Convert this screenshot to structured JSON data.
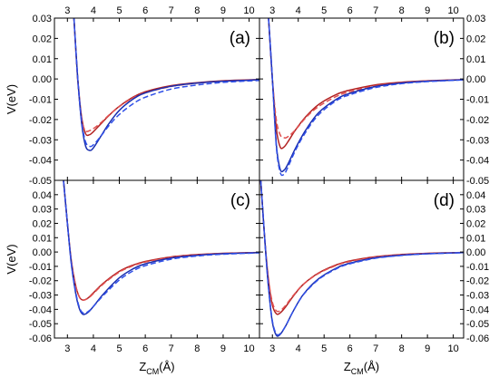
{
  "chart_data": [
    {
      "type": "line",
      "panel_label": "(a)",
      "xlabel_main": "Z",
      "xlabel_sub": "CM",
      "xlabel_unit": "(Å)",
      "ylabel": "V(eV)",
      "xlim": [
        2.5,
        10.4
      ],
      "ylim": [
        -0.05,
        0.03
      ],
      "xticks": [
        3,
        4,
        5,
        6,
        7,
        8,
        9,
        10
      ],
      "yticks": [
        -0.05,
        -0.04,
        -0.03,
        -0.02,
        -0.01,
        0.0,
        0.01,
        0.02,
        0.03
      ],
      "ytick_labels": [
        "-0.05",
        "-0.04",
        "-0.03",
        "-0.02",
        "-0.01",
        "0.00",
        "0.01",
        "0.02",
        "0.03"
      ],
      "series": [
        {
          "color": "#b22222",
          "dash": "solid",
          "x": [
            3.25,
            3.4,
            3.55,
            3.7,
            3.85,
            4.0,
            4.3,
            4.6,
            5.0,
            5.5,
            6.0,
            7.0,
            8.0,
            9.0,
            10.4
          ],
          "y": [
            0.03,
            0.0,
            -0.019,
            -0.027,
            -0.0275,
            -0.026,
            -0.022,
            -0.018,
            -0.0135,
            -0.0092,
            -0.0063,
            -0.0033,
            -0.0018,
            -0.0009,
            -0.0003
          ]
        },
        {
          "color": "#e05050",
          "dash": "dashed",
          "x": [
            3.25,
            3.4,
            3.55,
            3.7,
            3.85,
            4.0,
            4.3,
            4.6,
            5.0,
            5.5,
            6.0,
            7.0,
            8.0,
            9.0,
            10.4
          ],
          "y": [
            0.03,
            -0.001,
            -0.02,
            -0.0255,
            -0.0255,
            -0.0245,
            -0.0215,
            -0.0178,
            -0.0136,
            -0.0095,
            -0.0068,
            -0.0037,
            -0.0021,
            -0.0011,
            -0.0004
          ]
        },
        {
          "color": "#1a2fb0",
          "dash": "solid",
          "x": [
            3.25,
            3.4,
            3.55,
            3.7,
            3.85,
            4.0,
            4.3,
            4.6,
            5.0,
            5.5,
            6.0,
            7.0,
            8.0,
            9.0,
            10.4
          ],
          "y": [
            0.03,
            0.0,
            -0.022,
            -0.033,
            -0.0352,
            -0.034,
            -0.028,
            -0.022,
            -0.0155,
            -0.0102,
            -0.0069,
            -0.0036,
            -0.002,
            -0.0011,
            -0.0004
          ]
        },
        {
          "color": "#3050e8",
          "dash": "dashed",
          "x": [
            3.25,
            3.4,
            3.55,
            3.7,
            3.85,
            4.0,
            4.3,
            4.6,
            5.0,
            5.5,
            6.0,
            7.0,
            8.0,
            9.0,
            10.4
          ],
          "y": [
            0.03,
            0.0,
            -0.021,
            -0.031,
            -0.0332,
            -0.0325,
            -0.028,
            -0.023,
            -0.0175,
            -0.0125,
            -0.009,
            -0.005,
            -0.003,
            -0.0017,
            -0.0007
          ]
        }
      ]
    },
    {
      "type": "line",
      "panel_label": "(b)",
      "xlabel_main": "Z",
      "xlabel_sub": "CM",
      "xlabel_unit": "(Å)",
      "ylabel": "V(eV)",
      "xlim": [
        2.5,
        10.4
      ],
      "ylim": [
        -0.05,
        0.03
      ],
      "xticks": [
        3,
        4,
        5,
        6,
        7,
        8,
        9,
        10
      ],
      "yticks": [
        -0.05,
        -0.04,
        -0.03,
        -0.02,
        -0.01,
        0.0,
        0.01,
        0.02,
        0.03
      ],
      "ytick_labels": [
        "-0.05",
        "-0.04",
        "-0.03",
        "-0.02",
        "-0.01",
        "0.00",
        "0.01",
        "0.02",
        "0.03"
      ],
      "series": [
        {
          "color": "#b22222",
          "dash": "solid",
          "x": [
            2.85,
            3.0,
            3.15,
            3.3,
            3.45,
            3.6,
            3.9,
            4.3,
            4.8,
            5.5,
            6.0,
            7.0,
            8.0,
            9.0,
            10.4
          ],
          "y": [
            0.03,
            0.0,
            -0.024,
            -0.0335,
            -0.0335,
            -0.031,
            -0.025,
            -0.0185,
            -0.0125,
            -0.0075,
            -0.0055,
            -0.0029,
            -0.0016,
            -0.0009,
            -0.0003
          ]
        },
        {
          "color": "#e05050",
          "dash": "dashed",
          "x": [
            2.85,
            3.0,
            3.15,
            3.3,
            3.45,
            3.6,
            3.9,
            4.3,
            4.8,
            5.5,
            6.0,
            7.0,
            8.0,
            9.0,
            10.4
          ],
          "y": [
            0.03,
            0.0,
            -0.02,
            -0.0275,
            -0.029,
            -0.0285,
            -0.025,
            -0.019,
            -0.0135,
            -0.0085,
            -0.0063,
            -0.0034,
            -0.0019,
            -0.001,
            -0.0004
          ]
        },
        {
          "color": "#1a2fb0",
          "dash": "solid",
          "x": [
            2.85,
            3.0,
            3.15,
            3.3,
            3.45,
            3.6,
            3.9,
            4.3,
            4.8,
            5.5,
            6.0,
            7.0,
            8.0,
            9.0,
            10.4
          ],
          "y": [
            0.03,
            0.0,
            -0.032,
            -0.0445,
            -0.045,
            -0.042,
            -0.034,
            -0.025,
            -0.0165,
            -0.0098,
            -0.0071,
            -0.0037,
            -0.002,
            -0.0011,
            -0.0004
          ]
        },
        {
          "color": "#3050e8",
          "dash": "dashed",
          "x": [
            2.85,
            3.0,
            3.15,
            3.3,
            3.45,
            3.6,
            3.9,
            4.3,
            4.8,
            5.5,
            6.0,
            7.0,
            8.0,
            9.0,
            10.4
          ],
          "y": [
            0.03,
            0.0,
            -0.033,
            -0.046,
            -0.047,
            -0.0435,
            -0.035,
            -0.026,
            -0.0175,
            -0.0105,
            -0.0078,
            -0.0042,
            -0.0023,
            -0.0013,
            -0.0005
          ]
        }
      ]
    },
    {
      "type": "line",
      "panel_label": "(c)",
      "xlabel_main": "Z",
      "xlabel_sub": "CM",
      "xlabel_unit": "(Å)",
      "ylabel": "V(eV)",
      "xlim": [
        2.5,
        10.4
      ],
      "ylim": [
        -0.06,
        0.05
      ],
      "xticks": [
        3,
        4,
        5,
        6,
        7,
        8,
        9,
        10
      ],
      "yticks": [
        -0.06,
        -0.05,
        -0.04,
        -0.03,
        -0.02,
        -0.01,
        0.0,
        0.01,
        0.02,
        0.03,
        0.04
      ],
      "ytick_labels": [
        "-0.06",
        "-0.05",
        "-0.04",
        "-0.03",
        "-0.02",
        "-0.01",
        "0.00",
        "0.01",
        "0.02",
        "0.03",
        "0.04"
      ],
      "series": [
        {
          "color": "#b22222",
          "dash": "solid",
          "x": [
            2.85,
            3.0,
            3.15,
            3.3,
            3.45,
            3.6,
            3.8,
            4.0,
            4.4,
            5.0,
            5.5,
            6.0,
            7.0,
            8.0,
            9.0,
            10.4
          ],
          "y": [
            0.05,
            0.02,
            -0.006,
            -0.022,
            -0.031,
            -0.0335,
            -0.032,
            -0.0285,
            -0.0215,
            -0.0135,
            -0.0093,
            -0.0066,
            -0.0034,
            -0.0018,
            -0.0009,
            -0.0003
          ]
        },
        {
          "color": "#e05050",
          "dash": "dashed",
          "x": [
            2.85,
            3.0,
            3.15,
            3.3,
            3.45,
            3.6,
            3.8,
            4.0,
            4.4,
            5.0,
            5.5,
            6.0,
            7.0,
            8.0,
            9.0,
            10.4
          ],
          "y": [
            0.05,
            0.02,
            -0.006,
            -0.022,
            -0.031,
            -0.0335,
            -0.0322,
            -0.029,
            -0.022,
            -0.014,
            -0.0098,
            -0.007,
            -0.0037,
            -0.002,
            -0.001,
            -0.0004
          ]
        },
        {
          "color": "#1a2fb0",
          "dash": "solid",
          "x": [
            2.85,
            3.0,
            3.15,
            3.3,
            3.45,
            3.6,
            3.8,
            4.0,
            4.4,
            5.0,
            5.5,
            6.0,
            7.0,
            8.0,
            9.0,
            10.4
          ],
          "y": [
            0.05,
            0.02,
            -0.008,
            -0.027,
            -0.039,
            -0.0435,
            -0.042,
            -0.038,
            -0.029,
            -0.018,
            -0.012,
            -0.0082,
            -0.0042,
            -0.0023,
            -0.0012,
            -0.0004
          ]
        },
        {
          "color": "#3050e8",
          "dash": "dashed",
          "x": [
            2.85,
            3.0,
            3.15,
            3.3,
            3.45,
            3.6,
            3.8,
            4.0,
            4.4,
            5.0,
            5.5,
            6.0,
            7.0,
            8.0,
            9.0,
            10.4
          ],
          "y": [
            0.05,
            0.02,
            -0.008,
            -0.026,
            -0.038,
            -0.0425,
            -0.0415,
            -0.038,
            -0.03,
            -0.0195,
            -0.0135,
            -0.0095,
            -0.005,
            -0.0028,
            -0.0015,
            -0.0006
          ]
        }
      ]
    },
    {
      "type": "line",
      "panel_label": "(d)",
      "xlabel_main": "Z",
      "xlabel_sub": "CM",
      "xlabel_unit": "(Å)",
      "ylabel": "V(eV)",
      "xlim": [
        2.5,
        10.4
      ],
      "ylim": [
        -0.06,
        0.05
      ],
      "xticks": [
        3,
        4,
        5,
        6,
        7,
        8,
        9,
        10
      ],
      "yticks": [
        -0.06,
        -0.05,
        -0.04,
        -0.03,
        -0.02,
        -0.01,
        0.0,
        0.01,
        0.02,
        0.03,
        0.04
      ],
      "ytick_labels": [
        "-0.06",
        "-0.05",
        "-0.04",
        "-0.03",
        "-0.02",
        "-0.01",
        "0.00",
        "0.01",
        "0.02",
        "0.03",
        "0.04"
      ],
      "series": [
        {
          "color": "#b22222",
          "dash": "solid",
          "x": [
            2.55,
            2.7,
            2.85,
            3.0,
            3.15,
            3.3,
            3.5,
            3.8,
            4.2,
            4.8,
            5.5,
            6.0,
            7.0,
            8.0,
            9.0,
            10.4
          ],
          "y": [
            0.05,
            0.01,
            -0.02,
            -0.037,
            -0.043,
            -0.0425,
            -0.0385,
            -0.031,
            -0.0225,
            -0.0145,
            -0.0088,
            -0.0062,
            -0.0032,
            -0.0017,
            -0.0009,
            -0.0003
          ]
        },
        {
          "color": "#e05050",
          "dash": "dashed",
          "x": [
            2.55,
            2.7,
            2.85,
            3.0,
            3.15,
            3.3,
            3.5,
            3.8,
            4.2,
            4.8,
            5.5,
            6.0,
            7.0,
            8.0,
            9.0,
            10.4
          ],
          "y": [
            0.05,
            0.01,
            -0.019,
            -0.035,
            -0.041,
            -0.041,
            -0.0375,
            -0.0305,
            -0.0225,
            -0.0148,
            -0.0092,
            -0.0066,
            -0.0035,
            -0.0019,
            -0.001,
            -0.0004
          ]
        },
        {
          "color": "#1a2fb0",
          "dash": "solid",
          "x": [
            2.55,
            2.7,
            2.85,
            3.0,
            3.15,
            3.3,
            3.5,
            3.8,
            4.2,
            4.8,
            5.5,
            6.0,
            7.0,
            8.0,
            9.0,
            10.4
          ],
          "y": [
            0.05,
            0.01,
            -0.025,
            -0.049,
            -0.058,
            -0.0575,
            -0.052,
            -0.0415,
            -0.0295,
            -0.0185,
            -0.011,
            -0.0078,
            -0.004,
            -0.0022,
            -0.0012,
            -0.0004
          ]
        },
        {
          "color": "#3050e8",
          "dash": "dashed",
          "x": [
            2.55,
            2.7,
            2.85,
            3.0,
            3.15,
            3.3,
            3.5,
            3.8,
            4.2,
            4.8,
            5.5,
            6.0,
            7.0,
            8.0,
            9.0,
            10.4
          ],
          "y": [
            0.05,
            0.01,
            -0.025,
            -0.048,
            -0.057,
            -0.057,
            -0.052,
            -0.0415,
            -0.0298,
            -0.019,
            -0.0115,
            -0.0082,
            -0.0043,
            -0.0024,
            -0.0013,
            -0.0005
          ]
        }
      ]
    }
  ]
}
